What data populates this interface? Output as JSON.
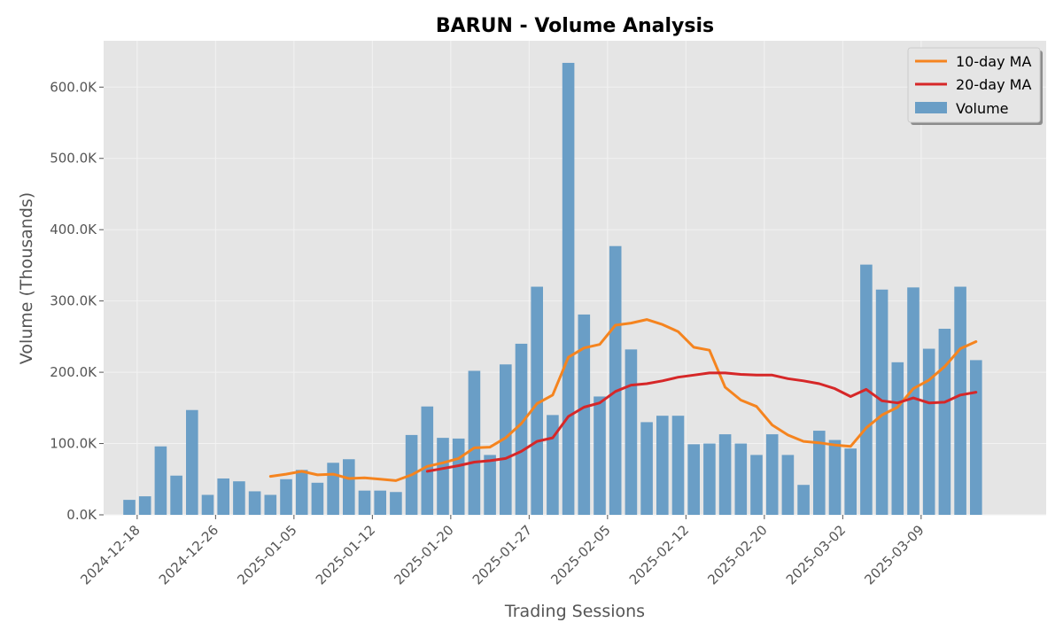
{
  "colors": {
    "plot_bg": "#E5E5E5",
    "grid": "#F2F2F2",
    "bar": "#6A9EC6",
    "ma10": "#F5841F",
    "ma20": "#D62728",
    "tick": "#555555",
    "legend_bg": "#E5E5E5",
    "legend_border": "#CCCCCC"
  },
  "chart_data": {
    "type": "bar",
    "title": "BARUN - Volume Analysis",
    "xlabel": "Trading Sessions",
    "ylabel": "Volume (Thousands)",
    "ylim": [
      0,
      665
    ],
    "y_ticks": [
      0,
      100,
      200,
      300,
      400,
      500,
      600
    ],
    "y_tick_labels": [
      "0.0K",
      "100.0K",
      "200.0K",
      "300.0K",
      "400.0K",
      "500.0K",
      "600.0K"
    ],
    "x_tick_labels": [
      "2024-12-18",
      "2024-12-26",
      "2025-01-05",
      "2025-01-12",
      "2025-01-20",
      "2025-01-27",
      "2025-02-05",
      "2025-02-12",
      "2025-02-20",
      "2025-03-02",
      "2025-03-09"
    ],
    "x_tick_positions": [
      0.5,
      5.5,
      10.5,
      15.5,
      20.5,
      25.5,
      30.5,
      35.5,
      40.5,
      45.5,
      50.5
    ],
    "legend": [
      "10-day MA",
      "20-day MA",
      "Volume"
    ],
    "legend_position": "top-right",
    "grid": true,
    "series": [
      {
        "name": "Volume",
        "type": "bar",
        "values": [
          21,
          26,
          96,
          55,
          147,
          28,
          51,
          47,
          33,
          28,
          50,
          63,
          45,
          73,
          78,
          34,
          34,
          32,
          112,
          152,
          108,
          107,
          202,
          84,
          211,
          240,
          320,
          140,
          634,
          281,
          166,
          377,
          232,
          130,
          139,
          139,
          99,
          100,
          113,
          100,
          84,
          113,
          84,
          42,
          118,
          105,
          93,
          351,
          316,
          214,
          319,
          233,
          261,
          320,
          217
        ]
      },
      {
        "name": "10-day MA",
        "type": "line",
        "start_index": 9,
        "values": [
          54,
          57,
          61,
          56,
          57,
          51,
          52,
          50,
          48,
          56,
          68,
          73,
          79,
          94,
          95,
          108,
          128,
          156,
          168,
          221,
          234,
          239,
          266,
          269,
          274,
          267,
          257,
          235,
          231,
          179,
          161,
          152,
          126,
          112,
          103,
          101,
          98,
          96,
          122,
          140,
          151,
          177,
          189,
          208,
          233,
          243
        ]
      },
      {
        "name": "20-day MA",
        "type": "line",
        "start_index": 19,
        "values": [
          61,
          65,
          69,
          74,
          76,
          79,
          89,
          103,
          108,
          138,
          151,
          157,
          173,
          182,
          184,
          188,
          193,
          196,
          199,
          199,
          197,
          196,
          196,
          191,
          188,
          184,
          177,
          166,
          176,
          160,
          157,
          164,
          157,
          158,
          168,
          172
        ]
      }
    ]
  }
}
